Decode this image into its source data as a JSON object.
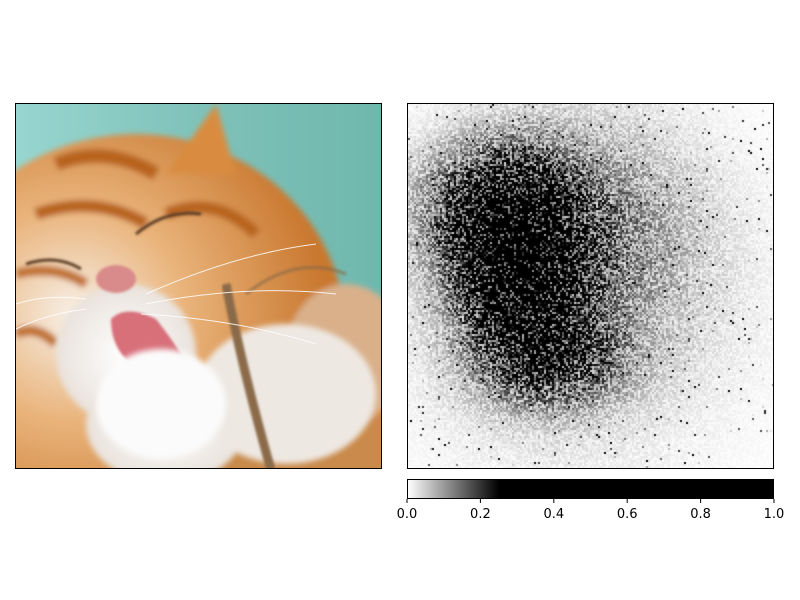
{
  "chart_data": [
    {
      "type": "image",
      "subject": "orange and white cat licking its paw against a teal background",
      "colors": {
        "background": "#8fcfc8",
        "fur_orange": "#d98c3f",
        "fur_white": "#f4f1ee",
        "tongue": "#d8707a"
      }
    },
    {
      "type": "heatmap",
      "colormap": "gray_r",
      "hotspot": "dense dark cluster in the center-left region of the panel",
      "colorbar": {
        "orientation": "horizontal",
        "vmin": 0.0,
        "vmax": 1.0,
        "ticks": [
          "0.0",
          "0.2",
          "0.4",
          "0.6",
          "0.8",
          "1.0"
        ],
        "saturation_value": 0.25
      }
    }
  ]
}
